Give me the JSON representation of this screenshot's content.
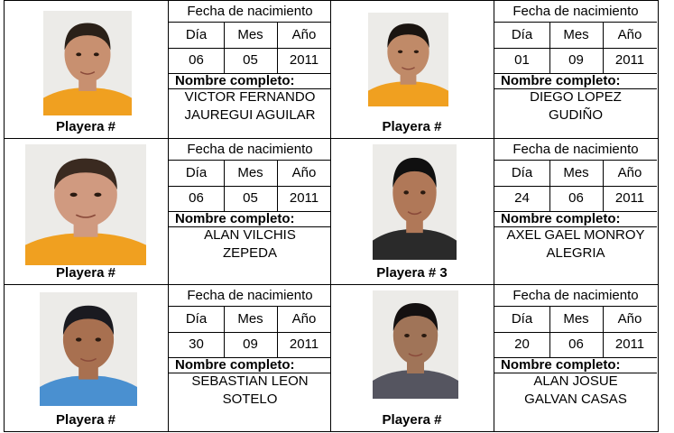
{
  "labels": {
    "fecha": "Fecha de nacimiento",
    "dia": "Día",
    "mes": "Mes",
    "anio": "Año",
    "nombre": "Nombre completo:"
  },
  "players": [
    {
      "playera": "Playera #",
      "dia": "06",
      "mes": "05",
      "anio": "2011",
      "name1": "VICTOR FERNANDO",
      "name2": "JAUREGUI AGUILAR",
      "shirt": "#f0a020"
    },
    {
      "playera": "Playera #",
      "dia": "01",
      "mes": "09",
      "anio": "2011",
      "name1": "DIEGO LOPEZ",
      "name2": "GUDIÑO",
      "shirt": "#f0a020"
    },
    {
      "playera": "Playera #",
      "dia": "06",
      "mes": "05",
      "anio": "2011",
      "name1": "ALAN VILCHIS",
      "name2": "ZEPEDA",
      "shirt": "#f0a020"
    },
    {
      "playera": "Playera # 3",
      "dia": "24",
      "mes": "06",
      "anio": "2011",
      "name1": "AXEL GAEL MONROY",
      "name2": "ALEGRIA",
      "shirt": "#2a2a2a"
    },
    {
      "playera": "Playera #",
      "dia": "30",
      "mes": "09",
      "anio": "2011",
      "name1": "SEBASTIAN LEON",
      "name2": "SOTELO",
      "shirt": "#4a90d0"
    },
    {
      "playera": "Playera #",
      "dia": "20",
      "mes": "06",
      "anio": "2011",
      "name1": "ALAN JOSUE",
      "name2": "GALVAN CASAS",
      "shirt": "#555560"
    }
  ]
}
